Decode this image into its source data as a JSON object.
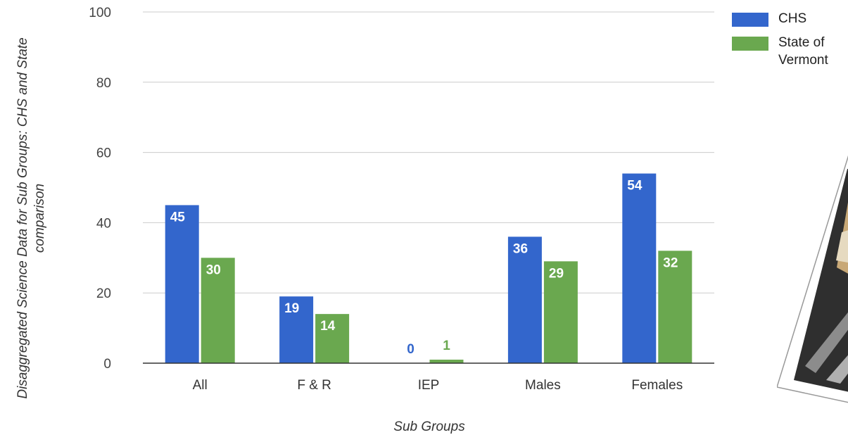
{
  "chart_data": {
    "type": "bar",
    "categories": [
      "All",
      "F & R",
      "IEP",
      "Males",
      "Females"
    ],
    "series": [
      {
        "name": "CHS",
        "values": [
          45,
          19,
          0,
          36,
          54
        ],
        "color": "#3366cc"
      },
      {
        "name": "State of Vermont",
        "values": [
          30,
          14,
          1,
          29,
          32
        ],
        "color": "#6aa84f"
      }
    ],
    "ylabel": "Disaggregated Science Data for Sub Groups: CHS and State comparison",
    "xlabel": "Sub Groups",
    "ylim": [
      0,
      100
    ],
    "yticks": [
      0,
      20,
      40,
      60,
      80,
      100
    ],
    "grid": true,
    "legend": "top-right"
  },
  "legend": {
    "items": [
      {
        "label": "CHS",
        "color": "#3366cc"
      },
      {
        "label": "State of\nVermont",
        "color": "#6aa84f"
      }
    ]
  }
}
